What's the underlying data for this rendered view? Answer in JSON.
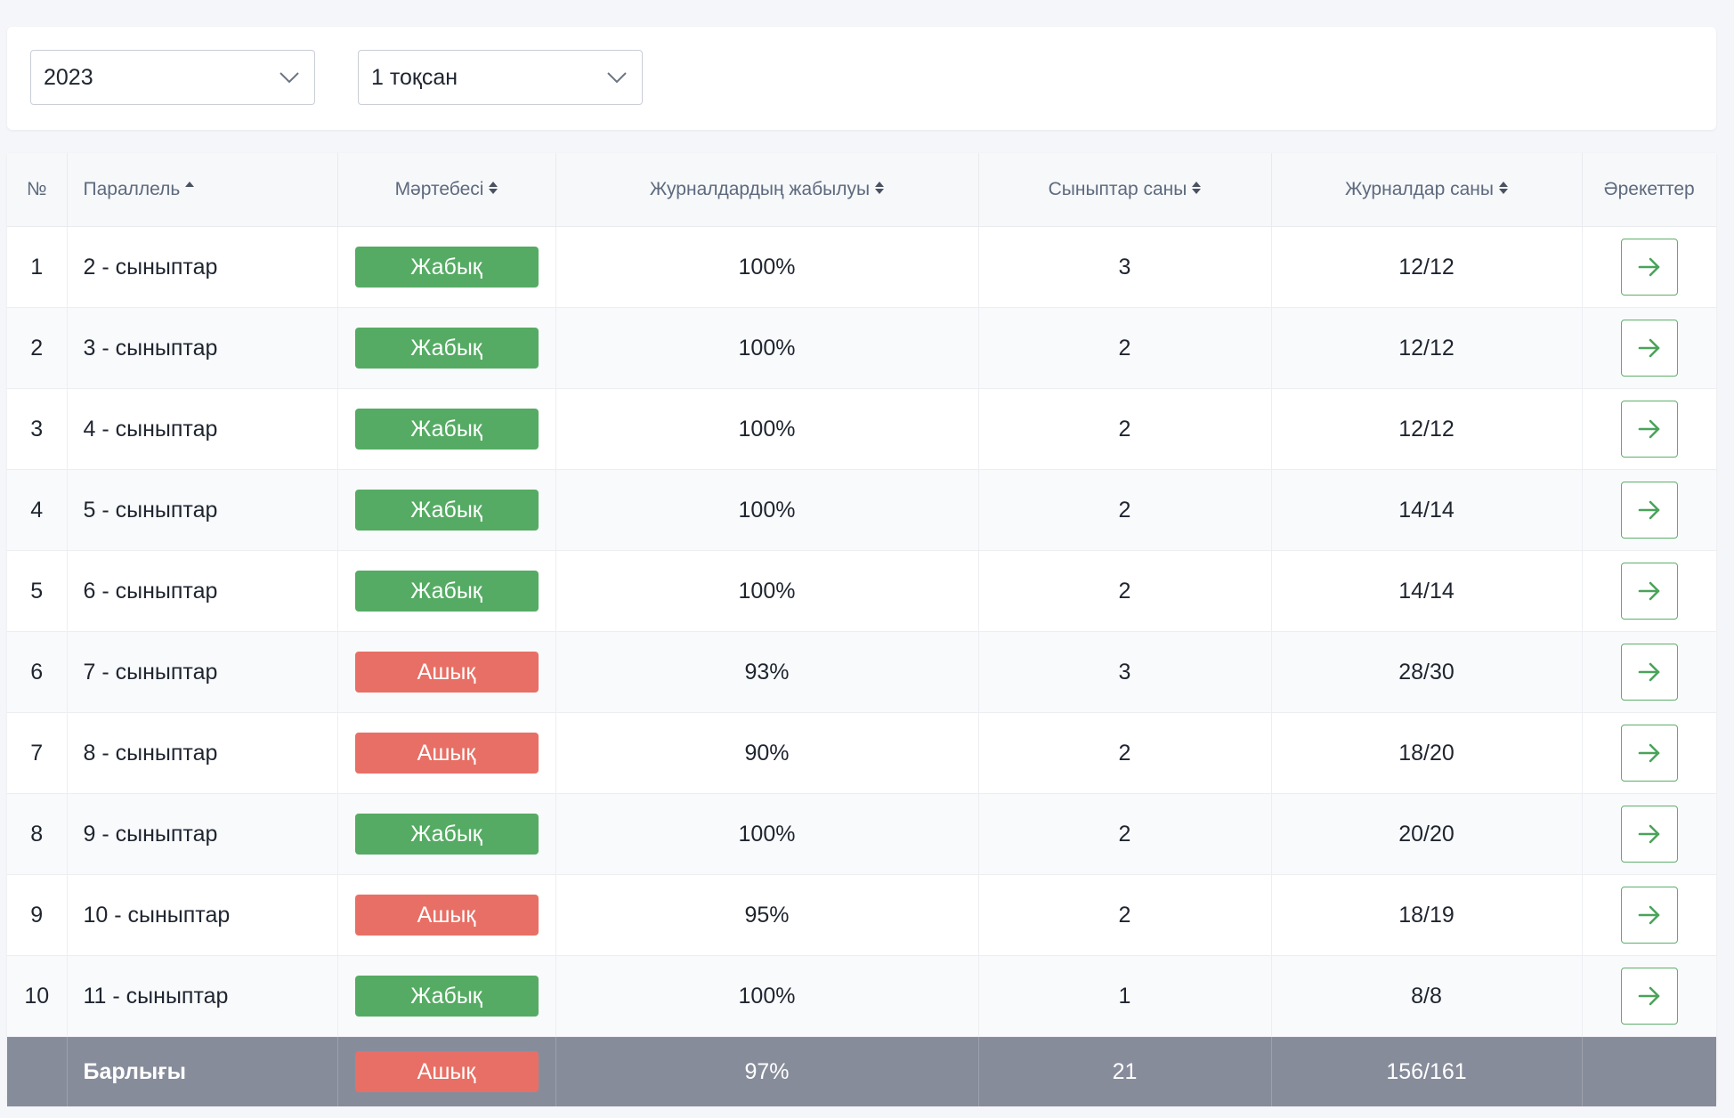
{
  "filters": {
    "year": "2023",
    "quarter": "1 тоқсан"
  },
  "table": {
    "headers": {
      "num": "№",
      "parallel": "Параллель",
      "status": "Мәртебесі",
      "closing": "Журналдардың жабылуы",
      "classes": "Сыныптар саны",
      "journals": "Журналдар саны",
      "actions": "Әрекеттер"
    },
    "rows": [
      {
        "num": "1",
        "parallel": "2 - сыныптар",
        "status": "Жабық",
        "status_kind": "closed",
        "closing": "100%",
        "classes": "3",
        "journals": "12/12"
      },
      {
        "num": "2",
        "parallel": "3 - сыныптар",
        "status": "Жабық",
        "status_kind": "closed",
        "closing": "100%",
        "classes": "2",
        "journals": "12/12"
      },
      {
        "num": "3",
        "parallel": "4 - сыныптар",
        "status": "Жабық",
        "status_kind": "closed",
        "closing": "100%",
        "classes": "2",
        "journals": "12/12"
      },
      {
        "num": "4",
        "parallel": "5 - сыныптар",
        "status": "Жабық",
        "status_kind": "closed",
        "closing": "100%",
        "classes": "2",
        "journals": "14/14"
      },
      {
        "num": "5",
        "parallel": "6 - сыныптар",
        "status": "Жабық",
        "status_kind": "closed",
        "closing": "100%",
        "classes": "2",
        "journals": "14/14"
      },
      {
        "num": "6",
        "parallel": "7 - сыныптар",
        "status": "Ашық",
        "status_kind": "open",
        "closing": "93%",
        "classes": "3",
        "journals": "28/30"
      },
      {
        "num": "7",
        "parallel": "8 - сыныптар",
        "status": "Ашық",
        "status_kind": "open",
        "closing": "90%",
        "classes": "2",
        "journals": "18/20"
      },
      {
        "num": "8",
        "parallel": "9 - сыныптар",
        "status": "Жабық",
        "status_kind": "closed",
        "closing": "100%",
        "classes": "2",
        "journals": "20/20"
      },
      {
        "num": "9",
        "parallel": "10 - сыныптар",
        "status": "Ашық",
        "status_kind": "open",
        "closing": "95%",
        "classes": "2",
        "journals": "18/19"
      },
      {
        "num": "10",
        "parallel": "11 - сыныптар",
        "status": "Жабық",
        "status_kind": "closed",
        "closing": "100%",
        "classes": "1",
        "journals": "8/8"
      }
    ],
    "total": {
      "label": "Барлығы",
      "status": "Ашық",
      "status_kind": "open",
      "closing": "97%",
      "classes": "21",
      "journals": "156/161"
    }
  },
  "colors": {
    "closed": "#55ab63",
    "open": "#e86f65",
    "action_border": "#5cae69",
    "total_row": "#878c9b"
  },
  "icons": {
    "select_arrow": "chevron-down-icon",
    "row_action": "arrow-right-icon",
    "sort_asc": "sort-asc-icon",
    "sort_both": "sort-icon"
  }
}
